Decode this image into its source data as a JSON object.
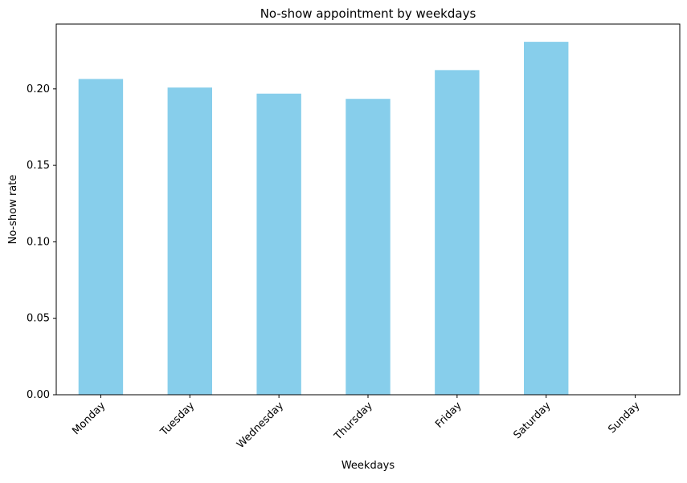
{
  "chart_data": {
    "type": "bar",
    "title": "No-show appointment by weekdays",
    "xlabel": "Weekdays",
    "ylabel": "No-show rate",
    "categories": [
      "Monday",
      "Tuesday",
      "Wednesday",
      "Thursday",
      "Friday",
      "Saturday",
      "Sunday"
    ],
    "values": [
      0.2065,
      0.2009,
      0.1969,
      0.1935,
      0.2123,
      0.2308,
      0
    ],
    "ylim": [
      0,
      0.2424
    ],
    "yticks": [
      "0.00",
      "0.05",
      "0.10",
      "0.15",
      "0.20"
    ],
    "grid": false,
    "bar_color": "#87ceeb",
    "tick_label_rotation": 45
  }
}
